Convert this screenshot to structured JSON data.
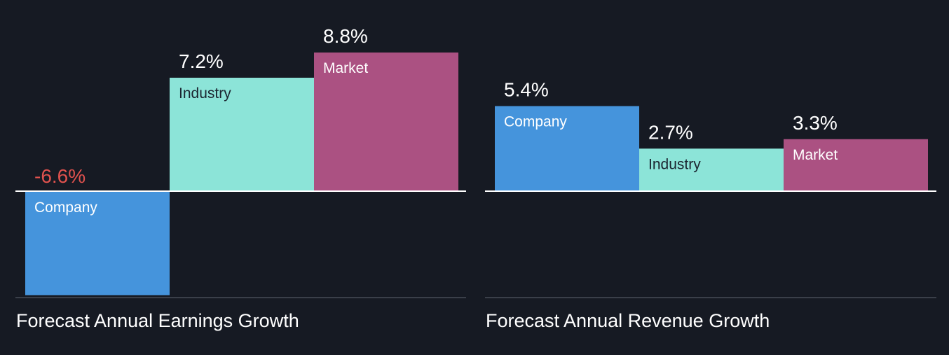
{
  "colors": {
    "background": "#161a23",
    "company": "#4594dc",
    "industry": "#8ce4d8",
    "market": "#ab5182",
    "negative_value": "#e0524e",
    "value_text": "#ffffff",
    "label_light": "#ffffff",
    "label_dark": "#1b2530",
    "baseline": "#ffffff",
    "bottom_axis": "#3a3f49",
    "title_text": "#ffffff"
  },
  "chart_data": [
    {
      "type": "bar",
      "title": "Forecast Annual Earnings Growth",
      "categories": [
        "Company",
        "Industry",
        "Market"
      ],
      "values": [
        -6.6,
        7.2,
        8.8
      ],
      "labels": [
        "-6.6%",
        "7.2%",
        "8.8%"
      ],
      "unit": "%",
      "ylim": [
        -6.7,
        8.8
      ],
      "grid": false,
      "legend": "none"
    },
    {
      "type": "bar",
      "title": "Forecast Annual Revenue Growth",
      "categories": [
        "Company",
        "Industry",
        "Market"
      ],
      "values": [
        5.4,
        2.7,
        3.3
      ],
      "labels": [
        "5.4%",
        "2.7%",
        "3.3%"
      ],
      "unit": "%",
      "ylim": [
        -6.7,
        8.8
      ],
      "grid": false,
      "legend": "none"
    }
  ]
}
